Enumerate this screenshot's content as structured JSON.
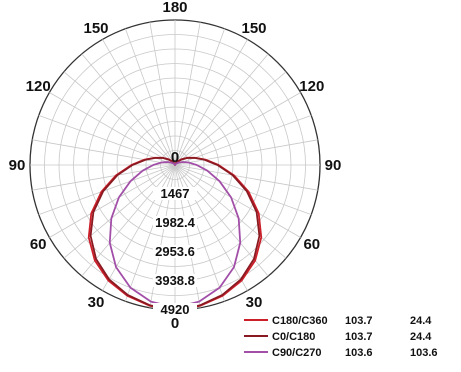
{
  "chart_data": {
    "type": "polar",
    "title": "",
    "angle_ticks": [
      {
        "deg": 0,
        "label": "0"
      },
      {
        "deg": 30,
        "label": "30"
      },
      {
        "deg": 60,
        "label": "60"
      },
      {
        "deg": 90,
        "label": "90"
      },
      {
        "deg": 120,
        "label": "120"
      },
      {
        "deg": 150,
        "label": "150"
      },
      {
        "deg": 180,
        "label": "180"
      },
      {
        "deg": 210,
        "label": "150"
      },
      {
        "deg": 240,
        "label": "120"
      },
      {
        "deg": 270,
        "label": "90"
      },
      {
        "deg": 300,
        "label": "60"
      },
      {
        "deg": 330,
        "label": "30"
      }
    ],
    "radial_range": [
      0,
      3000
    ],
    "radial_ticks": [
      {
        "value": 600,
        "label": "1467"
      },
      {
        "value": 1200,
        "label": "1982.4"
      },
      {
        "value": 1800,
        "label": "2953.6"
      },
      {
        "value": 2400,
        "label": "3938.8"
      },
      {
        "value": 3000,
        "label": "4920"
      }
    ],
    "grid": true,
    "series": [
      {
        "name": "C180/C360",
        "color": "#cc1f2a",
        "values": [
          {
            "angle": 0,
            "r": 3000
          },
          {
            "angle": 10,
            "r": 2960
          },
          {
            "angle": 20,
            "r": 2880
          },
          {
            "angle": 30,
            "r": 2760
          },
          {
            "angle": 40,
            "r": 2580
          },
          {
            "angle": 50,
            "r": 2330
          },
          {
            "angle": 60,
            "r": 2000
          },
          {
            "angle": 70,
            "r": 1620
          },
          {
            "angle": 80,
            "r": 1240
          },
          {
            "angle": 90,
            "r": 900
          },
          {
            "angle": 100,
            "r": 640
          },
          {
            "angle": 110,
            "r": 440
          },
          {
            "angle": 120,
            "r": 300
          },
          {
            "angle": 130,
            "r": 190
          },
          {
            "angle": 140,
            "r": 110
          },
          {
            "angle": 150,
            "r": 60
          },
          {
            "angle": 160,
            "r": 25
          },
          {
            "angle": 170,
            "r": 8
          },
          {
            "angle": 180,
            "r": 0
          }
        ]
      },
      {
        "name": "C0/C180",
        "color": "#8a1a22",
        "values": [
          {
            "angle": 0,
            "r": 3000
          },
          {
            "angle": 10,
            "r": 2950
          },
          {
            "angle": 20,
            "r": 2860
          },
          {
            "angle": 30,
            "r": 2730
          },
          {
            "angle": 40,
            "r": 2540
          },
          {
            "angle": 50,
            "r": 2280
          },
          {
            "angle": 60,
            "r": 1950
          },
          {
            "angle": 70,
            "r": 1580
          },
          {
            "angle": 80,
            "r": 1210
          },
          {
            "angle": 90,
            "r": 880
          },
          {
            "angle": 100,
            "r": 620
          },
          {
            "angle": 110,
            "r": 430
          },
          {
            "angle": 120,
            "r": 290
          },
          {
            "angle": 130,
            "r": 180
          },
          {
            "angle": 140,
            "r": 105
          },
          {
            "angle": 150,
            "r": 55
          },
          {
            "angle": 160,
            "r": 22
          },
          {
            "angle": 170,
            "r": 7
          },
          {
            "angle": 180,
            "r": 0
          }
        ]
      },
      {
        "name": "C90/C270",
        "color": "#a24fa8",
        "values": [
          {
            "angle": 0,
            "r": 2950
          },
          {
            "angle": 10,
            "r": 2870
          },
          {
            "angle": 20,
            "r": 2700
          },
          {
            "angle": 30,
            "r": 2440
          },
          {
            "angle": 40,
            "r": 2100
          },
          {
            "angle": 50,
            "r": 1720
          },
          {
            "angle": 60,
            "r": 1340
          },
          {
            "angle": 70,
            "r": 980
          },
          {
            "angle": 80,
            "r": 680
          },
          {
            "angle": 90,
            "r": 450
          },
          {
            "angle": 100,
            "r": 290
          },
          {
            "angle": 110,
            "r": 180
          },
          {
            "angle": 120,
            "r": 105
          },
          {
            "angle": 130,
            "r": 60
          },
          {
            "angle": 140,
            "r": 30
          },
          {
            "angle": 150,
            "r": 14
          },
          {
            "angle": 160,
            "r": 5
          },
          {
            "angle": 170,
            "r": 1
          },
          {
            "angle": 180,
            "r": 0
          }
        ]
      }
    ],
    "legend": {
      "placement": "bottom-right",
      "header": "",
      "col1_header": "",
      "col2_header": "",
      "rows": [
        {
          "name": "C180/C360",
          "color": "#cc1f2a",
          "v1": "103.7",
          "v2": "24.4"
        },
        {
          "name": "C0/C180",
          "color": "#8a1a22",
          "v1": "103.7",
          "v2": "24.4"
        },
        {
          "name": "C90/C270",
          "color": "#a24fa8",
          "v1": "103.6",
          "v2": "103.6"
        }
      ]
    }
  }
}
